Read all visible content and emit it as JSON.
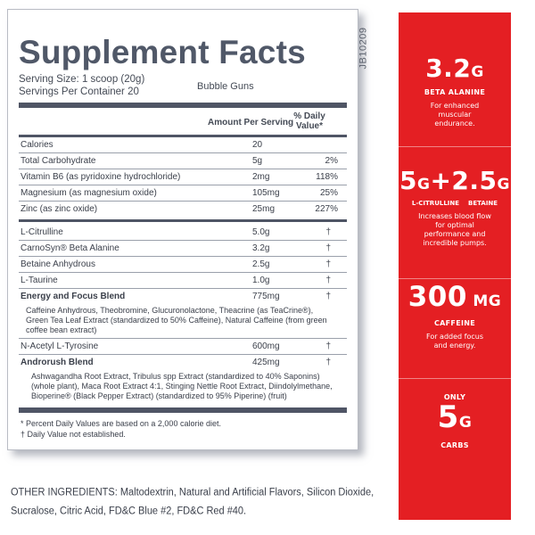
{
  "panel": {
    "title": "Supplement Facts",
    "serving_size": "Serving Size: 1 scoop (20g)",
    "servings_per_container": "Servings Per Container 20",
    "flavor": "Bubble Guns",
    "header_amount": "Amount Per Serving",
    "header_dv_line1": "% Daily",
    "header_dv_line2": "Value*",
    "nutrients": [
      {
        "name": "Calories",
        "amount": "20",
        "dv": ""
      },
      {
        "name": "Total Carbohydrate",
        "amount": "5g",
        "dv": "2%"
      },
      {
        "name": "Vitamin B6 (as pyridoxine hydrochloride)",
        "amount": "2mg",
        "dv": "118%"
      },
      {
        "name": "Magnesium (as magnesium oxide)",
        "amount": "105mg",
        "dv": "25%"
      },
      {
        "name": "Zinc (as zinc oxide)",
        "amount": "25mg",
        "dv": "227%"
      }
    ],
    "ingredients": [
      {
        "name": "L-Citrulline",
        "amount": "5.0g",
        "dv": "†"
      },
      {
        "name": "CarnoSyn® Beta Alanine",
        "amount": "3.2g",
        "dv": "†"
      },
      {
        "name": "Betaine Anhydrous",
        "amount": "2.5g",
        "dv": "†"
      },
      {
        "name": "L-Taurine",
        "amount": "1.0g",
        "dv": "†"
      }
    ],
    "energy_blend": {
      "name": "Energy and Focus Blend",
      "amount": "775mg",
      "dv": "†",
      "detail": "Caffeine Anhydrous, Theobromine, Glucuronolactone, Theacrine (as TeaCrine®), Green Tea Leaf Extract (standardized to 50% Caffeine), Natural Caffeine (from green coffee bean extract)"
    },
    "tyrosine": {
      "name": "N-Acetyl L-Tyrosine",
      "amount": "600mg",
      "dv": "†"
    },
    "androrush": {
      "name": "Androrush Blend",
      "amount": "425mg",
      "dv": "†",
      "detail": "Ashwagandha Root Extract, Tribulus spp Extract (standardized to 40% Saponins) (whole plant), Maca Root Extract 4:1, Stinging Nettle Root Extract, Diindolylmethane, Bioperine® (Black Pepper Extract) (standardized to 95% Piperine) (fruit)"
    },
    "footnote1": "* Percent Daily Values are based on a 2,000 calorie diet.",
    "footnote2": "† Daily Value not established."
  },
  "code": "JB10209",
  "callouts": {
    "beta": {
      "value": "3.2",
      "unit": "G",
      "label": "BETA ALANINE",
      "desc": "For enhanced muscular endurance."
    },
    "citrulline": {
      "value1": "5",
      "unit1": "G",
      "plus": "+",
      "value2": "2.5",
      "unit2": "G",
      "label1": "L-CITRULLINE",
      "label2": "BETAINE",
      "desc": "Increases blood flow for optimal performance and incredible pumps."
    },
    "caffeine": {
      "value": "300",
      "unit": " MG",
      "label": "CAFFEINE",
      "desc": "For added focus and energy."
    },
    "carbs": {
      "prefix": "ONLY",
      "value": "5",
      "unit": "G",
      "label": "CARBS"
    }
  },
  "other_ingredients": "OTHER INGREDIENTS: Maltodextrin, Natural and Artificial Flavors, Silicon Dioxide, Sucralose, Citric Acid, FD&C Blue #2, FD&C Red #40.",
  "colors": {
    "panel_text": "#505868",
    "callout_red": "#e41f23",
    "rule": "#4f5565"
  }
}
